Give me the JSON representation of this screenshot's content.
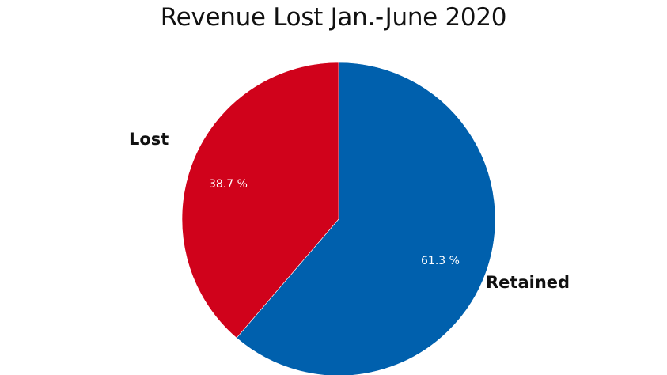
{
  "chart_data": {
    "type": "pie",
    "title": "Revenue Lost Jan.-June 2020",
    "categories": [
      "Retained",
      "Lost"
    ],
    "values": [
      61.3,
      38.7
    ],
    "unit": "%",
    "colors": [
      "#0060ad",
      "#d0021b"
    ],
    "data_labels": [
      "61.3 %",
      "38.7 %"
    ],
    "start_angle": "12 o'clock, clockwise",
    "legend": "none (category labels placed beside slices)"
  },
  "labels": {
    "title": "Revenue Lost Jan.-June 2020",
    "retained": "Retained",
    "lost": "Lost",
    "retained_pct": "61.3 %",
    "lost_pct": "38.7 %"
  }
}
